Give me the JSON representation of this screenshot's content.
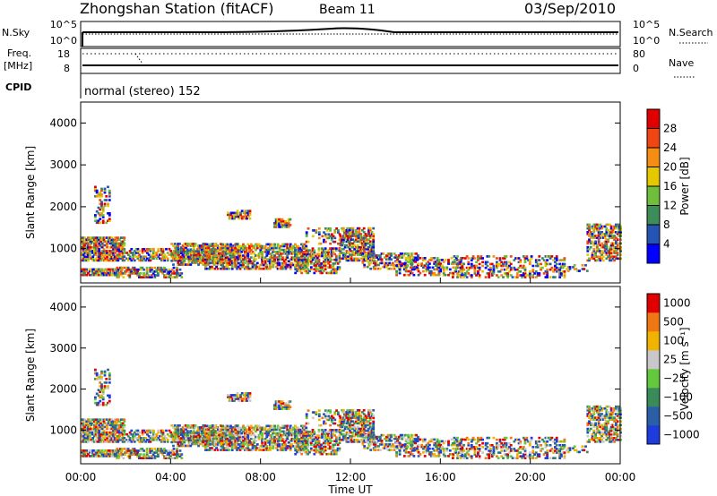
{
  "header": {
    "station": "Zhongshan Station (fitACF)",
    "beam": "Beam 11",
    "date": "03/Sep/2010"
  },
  "strip": {
    "nsky_label": "N.Sky",
    "nsky_ticks": [
      "10^5",
      "10^0"
    ],
    "nsearch_label": "N.Search",
    "nsearch_ticks": [
      "10^5",
      "10^0"
    ],
    "freq_label_1": "Freq.",
    "freq_label_2": "[MHz]",
    "freq_ticks": [
      "18",
      "8"
    ],
    "nave_label": "Nave",
    "nave_ticks": [
      "80",
      "0"
    ],
    "cpid_label": "CPID",
    "cpid_text": "normal (stereo) 152"
  },
  "chart_data": [
    {
      "type": "heatmap",
      "name_label": "Power [dB]",
      "ylabel": "Slant Range [km]",
      "yticks": [
        "1000",
        "2000",
        "3000",
        "4000"
      ],
      "ylim": [
        180,
        4500
      ],
      "xlim_hours": [
        0,
        24
      ],
      "colorbar_ticks": [
        "4",
        "8",
        "12",
        "16",
        "20",
        "24",
        "28"
      ],
      "colorbar_range": [
        0,
        32
      ],
      "colors": [
        "#0000ff",
        "#2554b4",
        "#3e8c5a",
        "#6fbe3c",
        "#e6c800",
        "#f58c14",
        "#f04614",
        "#e10000"
      ]
    },
    {
      "type": "heatmap",
      "name_label": "Velocity [m s⁻¹]",
      "ylabel": "Slant Range [km]",
      "yticks": [
        "1000",
        "2000",
        "3000",
        "4000"
      ],
      "ylim": [
        180,
        4500
      ],
      "xlim_hours": [
        0,
        24
      ],
      "colorbar_ticks": [
        "1000",
        "500",
        "100",
        "25",
        "−25",
        "−100",
        "−500",
        "−1000"
      ],
      "colors": [
        "#1e3cdc",
        "#2a5fa8",
        "#3a8a5a",
        "#64c83c",
        "#c8c8c8",
        "#f0b400",
        "#f07814",
        "#e10000"
      ]
    }
  ],
  "xaxis": {
    "ticks": [
      "00:00",
      "04:00",
      "08:00",
      "12:00",
      "16:00",
      "20:00",
      "00:00"
    ],
    "label": "Time UT"
  }
}
